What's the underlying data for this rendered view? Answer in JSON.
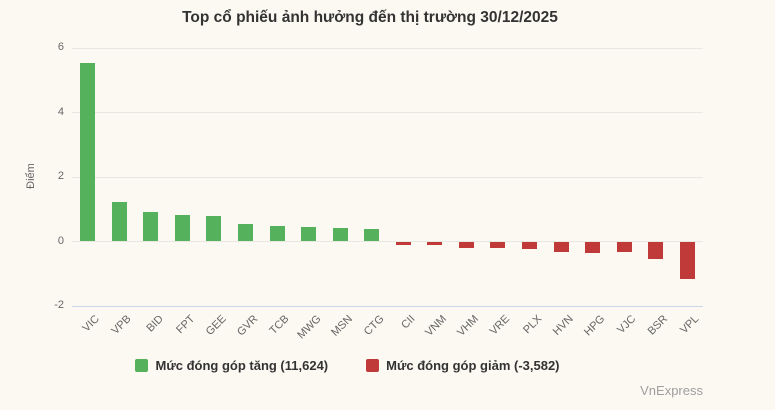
{
  "chart": {
    "title": "Top cổ phiếu ảnh hưởng đến thị trường 30/12/2025",
    "watermark": "VnExpress"
  },
  "chart_data": {
    "type": "bar",
    "title": "Top cổ phiếu ảnh hưởng đến thị trường 30/12/2025",
    "xlabel": "",
    "ylabel": "Điểm",
    "categories": [
      "VIC",
      "VPB",
      "BID",
      "FPT",
      "GEE",
      "GVR",
      "TCB",
      "MWG",
      "MSN",
      "CTG",
      "CII",
      "VNM",
      "VHM",
      "VRE",
      "PLX",
      "HVN",
      "HPG",
      "VJC",
      "BSR",
      "VPL"
    ],
    "values": [
      5.53,
      1.21,
      0.92,
      0.83,
      0.79,
      0.55,
      0.47,
      0.46,
      0.42,
      0.38,
      -0.12,
      -0.12,
      -0.19,
      -0.19,
      -0.24,
      -0.32,
      -0.35,
      -0.33,
      -0.53,
      -1.15
    ],
    "ylim": [
      -2,
      6
    ],
    "yticks": [
      6,
      4,
      2,
      0,
      -2
    ],
    "grid": true,
    "legend_position": "bottom",
    "x_label_rotation": -45
  },
  "legend": {
    "increase": {
      "label": "Mức đóng góp tăng (11,624)",
      "color": "#56b15c"
    },
    "decrease": {
      "label": "Mức đóng góp giảm (-3,582)",
      "color": "#bf3a38"
    }
  },
  "colors": {
    "background": "#fbf9f2",
    "increase": "#56b15c",
    "decrease": "#bf3a38",
    "grid": "#e8e8e3",
    "axis_line": "#ccd6eb",
    "title_text": "#333333",
    "tick_text": "#666666",
    "watermark_text": "#9e9e9e"
  }
}
